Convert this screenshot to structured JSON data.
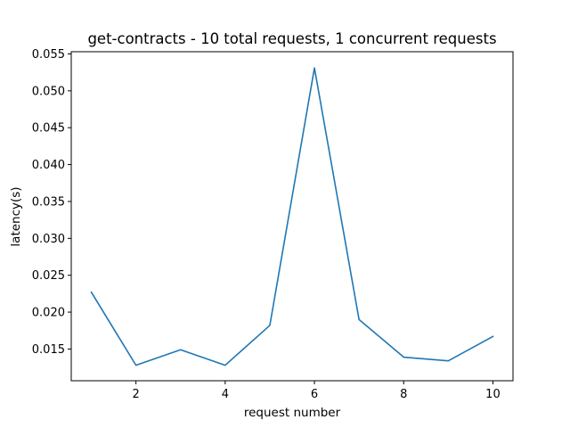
{
  "chart_data": {
    "type": "line",
    "title": "get-contracts - 10 total requests, 1 concurrent requests",
    "xlabel": "request number",
    "ylabel": "latency(s)",
    "xlim": [
      0.55,
      10.45
    ],
    "ylim": [
      0.0107,
      0.0553
    ],
    "xticks": [
      2,
      4,
      6,
      8,
      10
    ],
    "xtick_labels": [
      "2",
      "4",
      "6",
      "8",
      "10"
    ],
    "yticks": [
      0.015,
      0.02,
      0.025,
      0.03,
      0.035,
      0.04,
      0.045,
      0.05,
      0.055
    ],
    "ytick_labels": [
      "0.015",
      "0.020",
      "0.025",
      "0.030",
      "0.035",
      "0.040",
      "0.045",
      "0.050",
      "0.055"
    ],
    "grid": false,
    "series": [
      {
        "color": "#1f77b4",
        "x": [
          1,
          2,
          3,
          4,
          5,
          6,
          7,
          8,
          9,
          10
        ],
        "y": [
          0.0227,
          0.0128,
          0.0149,
          0.0128,
          0.0182,
          0.0531,
          0.019,
          0.0139,
          0.0134,
          0.0167
        ]
      }
    ]
  }
}
